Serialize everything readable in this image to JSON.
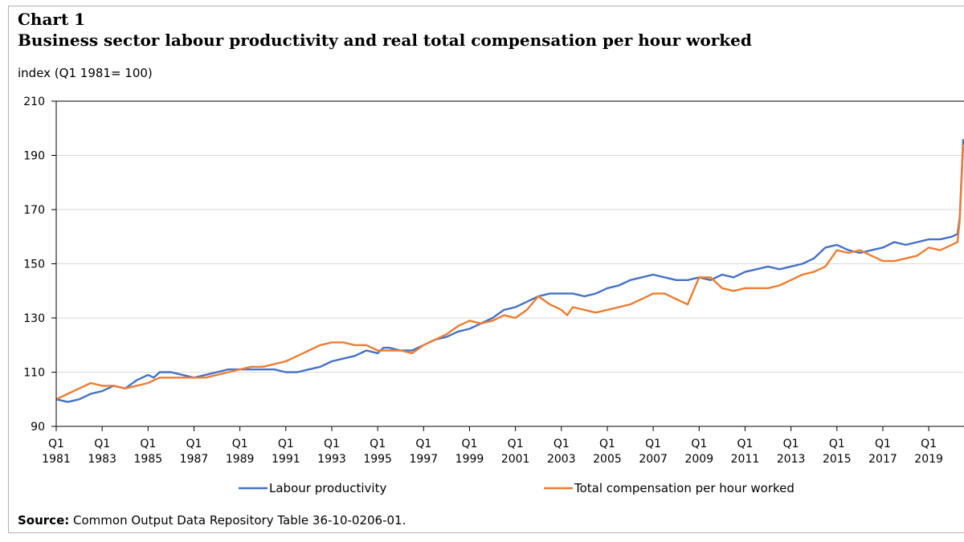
{
  "header": {
    "chart_label": "Chart 1",
    "title": "Business sector labour productivity and real total compensation per hour worked",
    "y_unit": "index (Q1 1981= 100)"
  },
  "footer": {
    "source_label": "Source:",
    "source_text": "Common Output Data Repository Table 36-10-0206-01."
  },
  "chart_data": {
    "type": "line",
    "title": "Business sector labour productivity and real total compensation per hour worked",
    "ylabel": "index (Q1 1981= 100)",
    "xlabel": "",
    "ylim": [
      90,
      210
    ],
    "xlim": [
      1981.0,
      2020.5
    ],
    "y_ticks": [
      90,
      110,
      130,
      150,
      170,
      190,
      210
    ],
    "x_ticks": [
      {
        "q": "Q1",
        "year": "1981",
        "x": 1981
      },
      {
        "q": "Q1",
        "year": "1983",
        "x": 1983
      },
      {
        "q": "Q1",
        "year": "1985",
        "x": 1985
      },
      {
        "q": "Q1",
        "year": "1987",
        "x": 1987
      },
      {
        "q": "Q1",
        "year": "1989",
        "x": 1989
      },
      {
        "q": "Q1",
        "year": "1991",
        "x": 1991
      },
      {
        "q": "Q1",
        "year": "1993",
        "x": 1993
      },
      {
        "q": "Q1",
        "year": "1995",
        "x": 1995
      },
      {
        "q": "Q1",
        "year": "1997",
        "x": 1997
      },
      {
        "q": "Q1",
        "year": "1999",
        "x": 1999
      },
      {
        "q": "Q1",
        "year": "2001",
        "x": 2001
      },
      {
        "q": "Q1",
        "year": "2003",
        "x": 2003
      },
      {
        "q": "Q1",
        "year": "2005",
        "x": 2005
      },
      {
        "q": "Q1",
        "year": "2007",
        "x": 2007
      },
      {
        "q": "Q1",
        "year": "2009",
        "x": 2009
      },
      {
        "q": "Q1",
        "year": "2011",
        "x": 2011
      },
      {
        "q": "Q1",
        "year": "2013",
        "x": 2013
      },
      {
        "q": "Q1",
        "year": "2015",
        "x": 2015
      },
      {
        "q": "Q1",
        "year": "2017",
        "x": 2017
      },
      {
        "q": "Q1",
        "year": "2019",
        "x": 2019
      }
    ],
    "grid": true,
    "legend_position": "bottom",
    "series": [
      {
        "name": "Labour productivity",
        "color": "#4472C4",
        "points": [
          [
            1981,
            100
          ],
          [
            1981.5,
            99
          ],
          [
            1982,
            100
          ],
          [
            1982.5,
            102
          ],
          [
            1983,
            103
          ],
          [
            1983.5,
            105
          ],
          [
            1984,
            104
          ],
          [
            1984.5,
            107
          ],
          [
            1985,
            109
          ],
          [
            1985.25,
            108
          ],
          [
            1985.5,
            110
          ],
          [
            1986,
            110
          ],
          [
            1986.5,
            109
          ],
          [
            1987,
            108
          ],
          [
            1987.5,
            109
          ],
          [
            1988,
            110
          ],
          [
            1988.5,
            111
          ],
          [
            1989,
            111
          ],
          [
            1989.5,
            111
          ],
          [
            1990,
            111
          ],
          [
            1990.5,
            111
          ],
          [
            1991,
            110
          ],
          [
            1991.5,
            110
          ],
          [
            1992,
            111
          ],
          [
            1992.5,
            112
          ],
          [
            1993,
            114
          ],
          [
            1993.5,
            115
          ],
          [
            1994,
            116
          ],
          [
            1994.5,
            118
          ],
          [
            1995,
            117
          ],
          [
            1995.25,
            119
          ],
          [
            1995.5,
            119
          ],
          [
            1996,
            118
          ],
          [
            1996.5,
            118
          ],
          [
            1997,
            120
          ],
          [
            1997.5,
            122
          ],
          [
            1998,
            123
          ],
          [
            1998.5,
            125
          ],
          [
            1999,
            126
          ],
          [
            1999.5,
            128
          ],
          [
            2000,
            130
          ],
          [
            2000.5,
            133
          ],
          [
            2001,
            134
          ],
          [
            2001.5,
            136
          ],
          [
            2002,
            138
          ],
          [
            2002.5,
            139
          ],
          [
            2003,
            139
          ],
          [
            2003.5,
            139
          ],
          [
            2004,
            138
          ],
          [
            2004.5,
            139
          ],
          [
            2005,
            141
          ],
          [
            2005.5,
            142
          ],
          [
            2006,
            144
          ],
          [
            2006.5,
            145
          ],
          [
            2007,
            146
          ],
          [
            2007.5,
            145
          ],
          [
            2008,
            144
          ],
          [
            2008.5,
            144
          ],
          [
            2009,
            145
          ],
          [
            2009.5,
            144
          ],
          [
            2010,
            146
          ],
          [
            2010.5,
            145
          ],
          [
            2011,
            147
          ],
          [
            2011.5,
            148
          ],
          [
            2012,
            149
          ],
          [
            2012.5,
            148
          ],
          [
            2013,
            149
          ],
          [
            2013.5,
            150
          ],
          [
            2014,
            152
          ],
          [
            2014.5,
            156
          ],
          [
            2015,
            157
          ],
          [
            2015.5,
            155
          ],
          [
            2016,
            154
          ],
          [
            2016.5,
            155
          ],
          [
            2017,
            156
          ],
          [
            2017.5,
            158
          ],
          [
            2018,
            157
          ],
          [
            2018.5,
            158
          ],
          [
            2019,
            159
          ],
          [
            2019.5,
            159
          ],
          [
            2020,
            160
          ],
          [
            2020.25,
            161
          ],
          [
            2020.35,
            167
          ],
          [
            2020.5,
            196
          ]
        ]
      },
      {
        "name": "Total compensation per hour worked",
        "color": "#ED7D31",
        "points": [
          [
            1981,
            100
          ],
          [
            1981.5,
            102
          ],
          [
            1982,
            104
          ],
          [
            1982.5,
            106
          ],
          [
            1983,
            105
          ],
          [
            1983.5,
            105
          ],
          [
            1984,
            104
          ],
          [
            1984.5,
            105
          ],
          [
            1985,
            106
          ],
          [
            1985.5,
            108
          ],
          [
            1986,
            108
          ],
          [
            1986.5,
            108
          ],
          [
            1987,
            108
          ],
          [
            1987.5,
            108
          ],
          [
            1988,
            109
          ],
          [
            1988.5,
            110
          ],
          [
            1989,
            111
          ],
          [
            1989.5,
            112
          ],
          [
            1990,
            112
          ],
          [
            1990.5,
            113
          ],
          [
            1991,
            114
          ],
          [
            1991.5,
            116
          ],
          [
            1992,
            118
          ],
          [
            1992.5,
            120
          ],
          [
            1993,
            121
          ],
          [
            1993.5,
            121
          ],
          [
            1994,
            120
          ],
          [
            1994.5,
            120
          ],
          [
            1995,
            118
          ],
          [
            1995.5,
            118
          ],
          [
            1996,
            118
          ],
          [
            1996.5,
            117
          ],
          [
            1997,
            120
          ],
          [
            1997.5,
            122
          ],
          [
            1998,
            124
          ],
          [
            1998.5,
            127
          ],
          [
            1999,
            129
          ],
          [
            1999.5,
            128
          ],
          [
            2000,
            129
          ],
          [
            2000.5,
            131
          ],
          [
            2001,
            130
          ],
          [
            2001.5,
            133
          ],
          [
            2002,
            138
          ],
          [
            2002.5,
            135
          ],
          [
            2003,
            133
          ],
          [
            2003.25,
            131
          ],
          [
            2003.5,
            134
          ],
          [
            2004,
            133
          ],
          [
            2004.5,
            132
          ],
          [
            2005,
            133
          ],
          [
            2005.5,
            134
          ],
          [
            2006,
            135
          ],
          [
            2006.5,
            137
          ],
          [
            2007,
            139
          ],
          [
            2007.5,
            139
          ],
          [
            2008,
            137
          ],
          [
            2008.5,
            135
          ],
          [
            2009,
            145
          ],
          [
            2009.5,
            145
          ],
          [
            2010,
            141
          ],
          [
            2010.5,
            140
          ],
          [
            2011,
            141
          ],
          [
            2011.5,
            141
          ],
          [
            2012,
            141
          ],
          [
            2012.5,
            142
          ],
          [
            2013,
            144
          ],
          [
            2013.5,
            146
          ],
          [
            2014,
            147
          ],
          [
            2014.5,
            149
          ],
          [
            2015,
            155
          ],
          [
            2015.5,
            154
          ],
          [
            2016,
            155
          ],
          [
            2016.5,
            153
          ],
          [
            2017,
            151
          ],
          [
            2017.5,
            151
          ],
          [
            2018,
            152
          ],
          [
            2018.5,
            153
          ],
          [
            2019,
            156
          ],
          [
            2019.5,
            155
          ],
          [
            2020,
            157
          ],
          [
            2020.25,
            158
          ],
          [
            2020.35,
            166
          ],
          [
            2020.5,
            194
          ]
        ]
      }
    ]
  }
}
